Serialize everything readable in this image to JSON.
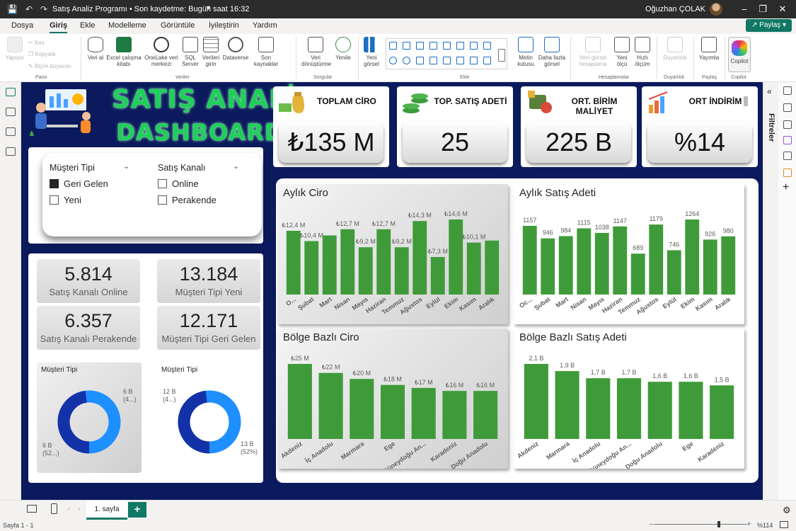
{
  "titlebar": {
    "title": "Satış Analiz Programı • Son kaydetme: Bugün saat 16:32",
    "user": "Oğuzhan ÇOLAK"
  },
  "menu": {
    "tabs": [
      "Dosya",
      "Giriş",
      "Ekle",
      "Modelleme",
      "Görüntüle",
      "İyileştirin",
      "Yardım"
    ],
    "active": "Giriş",
    "share": "Paylaş"
  },
  "ribbon": {
    "pano": {
      "paste": "Yapıştır",
      "cut": "Kes",
      "copy": "Kopyala",
      "format": "Biçim boyacısı",
      "label": "Pano"
    },
    "veri": {
      "items": [
        "Veri al",
        "Excel çalışma kitabı",
        "OneLake veri merkezi",
        "SQL Server",
        "Verileri girin",
        "Dataverse",
        "Son kaynaklar"
      ],
      "label": "Veriler"
    },
    "sorgular": {
      "items": [
        "Veri dönüştürme",
        "Yenile"
      ],
      "label": "Sorgular"
    },
    "ekle": {
      "items": [
        "Yeni görsel",
        "Metin kutusu",
        "Daha fazla görsel"
      ],
      "label": "Ekle"
    },
    "hesap": {
      "items": [
        "Yeni görsel hesaplama",
        "Yeni ölçü",
        "Hızlı ölçüm"
      ],
      "label": "Hesaplamalar"
    },
    "duyarlilik": {
      "items": [
        "Duyarlılık"
      ],
      "label": "Duyarlılık"
    },
    "paylas": {
      "items": [
        "Yayımla"
      ],
      "label": "Paylaş"
    },
    "copilot": {
      "items": [
        "Copilot"
      ],
      "label": "Copilot"
    }
  },
  "dashboard": {
    "title_line1": "SATIŞ ANALİZ",
    "title_line2": "DASHBOARD'U",
    "kpis": [
      {
        "label": "TOPLAM CİRO",
        "value": "₺135 M",
        "icon": "money-bag-icon"
      },
      {
        "label": "TOP. SATIŞ ADETİ",
        "value": "25",
        "icon": "coin-stack-icon"
      },
      {
        "label": "ORT. BİRİM MALİYET",
        "value": "225 B",
        "icon": "cost-icon"
      },
      {
        "label": "ORT İNDİRİM",
        "value": "%14",
        "icon": "bar-growth-icon"
      }
    ],
    "slicers": [
      {
        "title": "Müşteri Tipi",
        "options": [
          {
            "label": "Geri Gelen",
            "checked": true
          },
          {
            "label": "Yeni",
            "checked": false
          }
        ]
      },
      {
        "title": "Satış Kanalı",
        "options": [
          {
            "label": "Online",
            "checked": false
          },
          {
            "label": "Perakende",
            "checked": false
          }
        ]
      }
    ],
    "cards": [
      {
        "value": "5.814",
        "label": "Satış Kanalı Online"
      },
      {
        "value": "13.184",
        "label": "Müşteri Tipi Yeni"
      },
      {
        "value": "6.357",
        "label": "Satış Kanalı Perakende"
      },
      {
        "value": "12.171",
        "label": "Müşteri Tipi Geri Gelen"
      }
    ],
    "donuts": [
      {
        "title": "Müşteri Tipi",
        "label_a": "6 B",
        "label_a2": "(4...)",
        "label_b": "6 B",
        "label_b2": "(52...)",
        "share": 0.48
      },
      {
        "title": "Müşteri Tipi",
        "label_a": "12 B",
        "label_a2": "(4...)",
        "label_b": "13 B",
        "label_b2": "(52%)",
        "share": 0.48
      }
    ]
  },
  "chart_data": [
    {
      "type": "bar",
      "title": "Aylık Ciro",
      "categories": [
        "Ocak",
        "Şubat",
        "Mart",
        "Nisan",
        "Mayıs",
        "Haziran",
        "Temmuz",
        "Ağustos",
        "Eylül",
        "Ekim",
        "Kasım",
        "Aralık"
      ],
      "tick_labels": [
        "O...",
        "Şubat",
        "Mart",
        "Nisan",
        "Mayıs",
        "Haziran",
        "Temmuz",
        "Ağustos",
        "Eylül",
        "Ekim",
        "Kasım",
        "Aralık"
      ],
      "values": [
        12.4,
        10.4,
        11.5,
        12.7,
        9.2,
        12.7,
        9.2,
        14.3,
        7.3,
        14.6,
        10.1,
        10.5
      ],
      "labels": [
        "₺12,4 M",
        "₺10,4 M",
        "",
        "₺12,7 M",
        "₺9,2 M",
        "₺12,7 M",
        "₺9,2 M",
        "₺14,3 M",
        "₺7,3 M",
        "₺14,6 M",
        "₺10,1 M",
        ""
      ],
      "color": "#3f9b3a"
    },
    {
      "type": "bar",
      "title": "Aylık Satış Adeti",
      "categories": [
        "Ocak",
        "Şubat",
        "Mart",
        "Nisan",
        "Mayıs",
        "Haziran",
        "Temmuz",
        "Ağustos",
        "Eylül",
        "Ekim",
        "Kasım",
        "Aralık"
      ],
      "tick_labels": [
        "Oc...",
        "Şubat",
        "Mart",
        "Nisan",
        "Mayıs",
        "Haziran",
        "Temmuz",
        "Ağustos",
        "Eylül",
        "Ekim",
        "Kasım",
        "Aralık"
      ],
      "values": [
        1157,
        946,
        984,
        1115,
        1038,
        1147,
        689,
        1179,
        746,
        1264,
        926,
        980
      ],
      "labels": [
        "1157",
        "946",
        "984",
        "1115",
        "1038",
        "1147",
        "689",
        "1179",
        "746",
        "1264",
        "926",
        "980"
      ],
      "color": "#3f9b3a"
    },
    {
      "type": "bar",
      "title": "Bölge Bazlı Ciro",
      "categories": [
        "Akdeniz",
        "İç Anadolu",
        "Marmara",
        "Ege",
        "Güneydoğu Anadolu",
        "Karadeniz",
        "Doğu Anadolu"
      ],
      "tick_labels": [
        "Akdeniz",
        "İç Anadolu",
        "Marmara",
        "Ege",
        "Güneydoğu An...",
        "Karadeniz",
        "Doğu Anadolu"
      ],
      "values": [
        25,
        22,
        20,
        18,
        17,
        16,
        16
      ],
      "labels": [
        "₺25 M",
        "₺22 M",
        "₺20 M",
        "₺18 M",
        "₺17 M",
        "₺16 M",
        "₺16 M"
      ],
      "color": "#3f9b3a"
    },
    {
      "type": "bar",
      "title": "Bölge Bazlı Satış Adeti",
      "categories": [
        "Akdeniz",
        "Marmara",
        "İç Anadolu",
        "Güneydoğu Anadolu",
        "Doğu Anadolu",
        "Ege",
        "Karadeniz"
      ],
      "tick_labels": [
        "Akdeniz",
        "Marmara",
        "İç Anadolu",
        "Güneydoğu An...",
        "Doğu Anadolu",
        "Ege",
        "Karadeniz"
      ],
      "values": [
        2.1,
        1.9,
        1.7,
        1.7,
        1.6,
        1.6,
        1.5
      ],
      "labels": [
        "2,1 B",
        "1,9 B",
        "1,7 B",
        "1,7 B",
        "1,6 B",
        "1,6 B",
        "1,5 B"
      ],
      "color": "#3f9b3a"
    }
  ],
  "rightpane": {
    "filters_label": "Filtreler"
  },
  "pagebar": {
    "page_tab": "1. sayfa"
  },
  "status": {
    "page": "Sayfa 1 - 1",
    "zoom": "%114"
  },
  "colors": {
    "accent": "#117865",
    "canvas": "#0b1a5c",
    "bar": "#3f9b3a",
    "donut_dark": "#1432a8",
    "donut_light": "#1e8fff"
  }
}
